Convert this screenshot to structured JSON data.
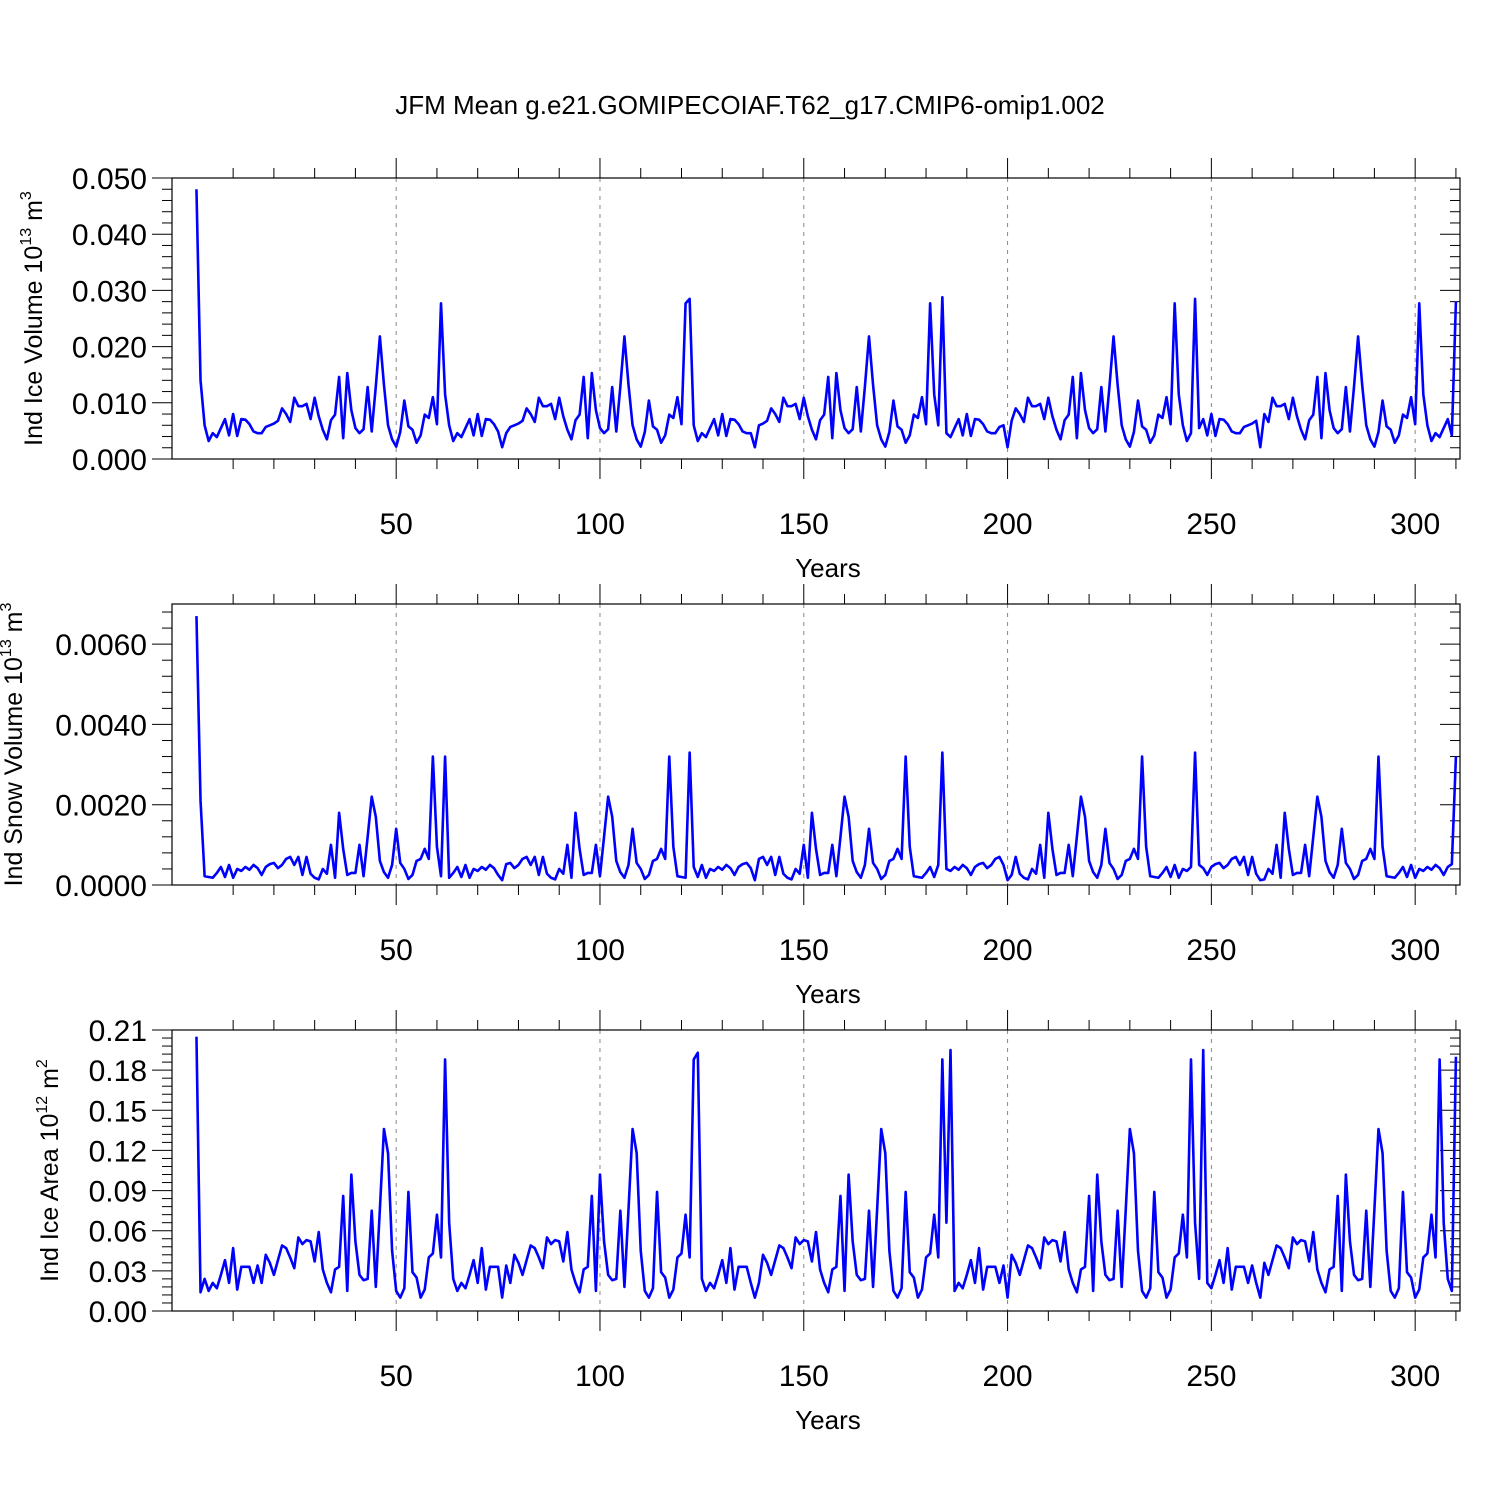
{
  "title": "JFM Mean g.e21.GOMIPECOIAF.T62_g17.CMIP6-omip1.002",
  "colors": {
    "line": "#0000ff",
    "axis": "#000000",
    "grid": "#888888"
  },
  "chart_data": [
    {
      "type": "line",
      "name": "ice-volume",
      "ylabel": {
        "base": "Ind Ice Volume 10",
        "exp": "13",
        "unit": " m",
        "unit_exp": "3"
      },
      "xlabel": "Years",
      "xlim": [
        1,
        310
      ],
      "ylim": [
        0,
        0.05
      ],
      "yticks": [
        "0.000",
        "0.010",
        "0.020",
        "0.030",
        "0.040",
        "0.050"
      ],
      "xticks": [
        "50",
        "100",
        "150",
        "200",
        "250",
        "300"
      ],
      "first": 0.048,
      "second": 0.014,
      "last": 0.028,
      "base_cycle": [
        0.006,
        0.0032,
        0.0046,
        0.0039,
        0.0055,
        0.0071,
        0.0042,
        0.008,
        0.0041,
        0.0071,
        0.007,
        0.0062,
        0.0049,
        0.0046,
        0.0046,
        0.0057,
        0.006,
        0.0063,
        0.0068,
        0.009,
        0.008,
        0.0066,
        0.0109,
        0.0094,
        0.0094,
        0.0098,
        0.0071,
        0.0109,
        0.0076,
        0.0052,
        0.0035,
        0.0069,
        0.0079,
        0.0146,
        0.0037,
        0.0153,
        0.0087,
        0.0055,
        0.0046,
        0.0053,
        0.0128,
        0.0049,
        0.0129,
        0.0218,
        0.0132,
        0.006,
        0.0035,
        0.0022,
        0.0048,
        0.0104,
        0.0058,
        0.0052,
        0.0029,
        0.0042,
        0.0079,
        0.0073,
        0.011,
        0.0062,
        0.0277,
        0.0115
      ],
      "overrides": {
        "76": 0.0021,
        "138": 0.0021,
        "200": 0.0021,
        "262": 0.0021,
        "122": 0.0285,
        "184": 0.0288,
        "246": 0.0285
      }
    },
    {
      "type": "line",
      "name": "snow-volume",
      "ylabel": {
        "base": "Ind Snow Volume 10",
        "exp": "13",
        "unit": " m",
        "unit_exp": "3"
      },
      "xlabel": "Years",
      "xlim": [
        1,
        310
      ],
      "ylim": [
        0,
        0.007
      ],
      "yticks": [
        "0.0000",
        "0.0020",
        "0.0040",
        "0.0060"
      ],
      "ytick_values": [
        0,
        0.002,
        0.004,
        0.006
      ],
      "xticks": [
        "50",
        "100",
        "150",
        "200",
        "250",
        "300"
      ],
      "first": 0.0067,
      "second": 0.0021,
      "last": 0.0032,
      "base_cycle": [
        0.00022,
        0.0002,
        0.00018,
        0.0003,
        0.00045,
        0.0002,
        0.0005,
        0.00018,
        0.0004,
        0.00035,
        0.00045,
        0.00038,
        0.0005,
        0.00042,
        0.00025,
        0.00045,
        0.00052,
        0.00055,
        0.00042,
        0.0005,
        0.00065,
        0.0007,
        0.0005,
        0.0007,
        0.00025,
        0.0007,
        0.00028,
        0.00018,
        0.00014,
        0.0004,
        0.00028,
        0.001,
        0.00018,
        0.0018,
        0.0009,
        0.00025,
        0.0003,
        0.0003,
        0.001,
        0.00022,
        0.0012,
        0.0022,
        0.0017,
        0.0006,
        0.00032,
        0.00018,
        0.0005,
        0.0014,
        0.00055,
        0.0004,
        0.00015,
        0.00025,
        0.0006,
        0.00065,
        0.0009,
        0.00065,
        0.0032,
        0.00095
      ],
      "overrides": {
        "62": 0.0032,
        "76": 0.00012,
        "138": 0.00012,
        "200": 0.00012,
        "262": 0.00012,
        "122": 0.0033,
        "184": 0.0033,
        "246": 0.0033
      }
    },
    {
      "type": "line",
      "name": "ice-area",
      "ylabel": {
        "base": "Ind Ice Area 10",
        "exp": "12",
        "unit": " m",
        "unit_exp": "2"
      },
      "xlabel": "Years",
      "xlim": [
        1,
        310
      ],
      "ylim": [
        0,
        0.21
      ],
      "yticks": [
        "0.00",
        "0.03",
        "0.06",
        "0.09",
        "0.12",
        "0.15",
        "0.18",
        "0.21"
      ],
      "ytick_values": [
        0,
        0.03,
        0.06,
        0.09,
        0.12,
        0.15,
        0.18,
        0.21
      ],
      "xticks": [
        "50",
        "100",
        "150",
        "200",
        "250",
        "300"
      ],
      "first": 0.205,
      "second": 0.014,
      "last": 0.19,
      "base_cycle": [
        0.024,
        0.015,
        0.021,
        0.017,
        0.027,
        0.038,
        0.021,
        0.047,
        0.016,
        0.033,
        0.033,
        0.033,
        0.021,
        0.034,
        0.021,
        0.042,
        0.036,
        0.027,
        0.038,
        0.049,
        0.047,
        0.04,
        0.032,
        0.055,
        0.05,
        0.053,
        0.052,
        0.037,
        0.059,
        0.031,
        0.021,
        0.014,
        0.031,
        0.033,
        0.086,
        0.015,
        0.102,
        0.052,
        0.027,
        0.023,
        0.024,
        0.075,
        0.018,
        0.076,
        0.136,
        0.118,
        0.045,
        0.015,
        0.01,
        0.017,
        0.089,
        0.029,
        0.025,
        0.01,
        0.016,
        0.04,
        0.043,
        0.072,
        0.04,
        0.188,
        0.066
      ],
      "overrides": {
        "62": 0.188,
        "76": 0.01,
        "138": 0.01,
        "200": 0.01,
        "262": 0.01,
        "124": 0.193,
        "186": 0.195,
        "248": 0.195
      }
    }
  ]
}
